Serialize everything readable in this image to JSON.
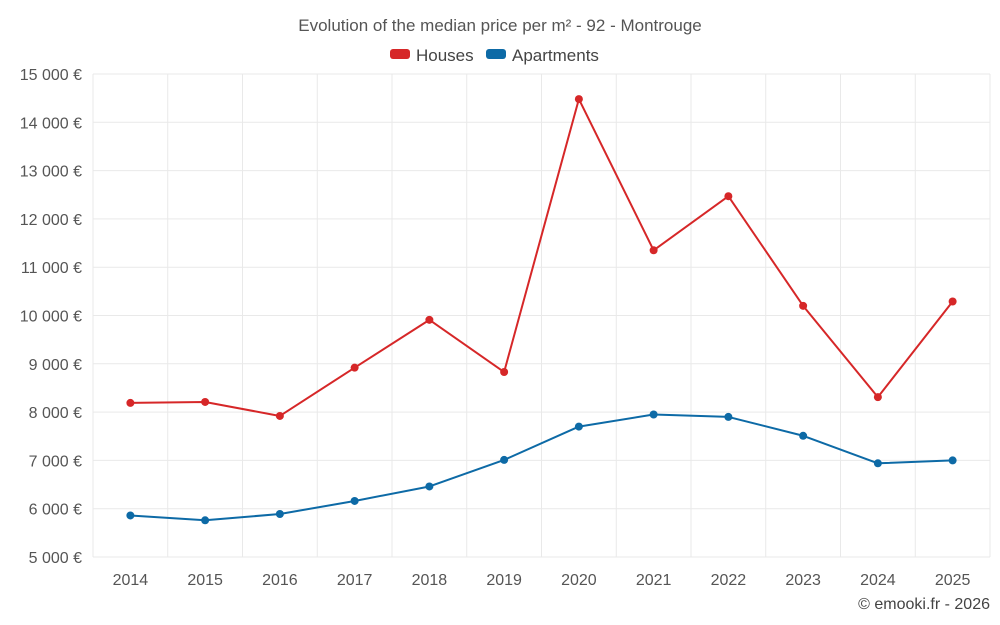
{
  "chart_data": {
    "type": "line",
    "title": "Evolution of the median price per m² - 92 - Montrouge",
    "categories": [
      "2014",
      "2015",
      "2016",
      "2017",
      "2018",
      "2019",
      "2020",
      "2021",
      "2022",
      "2023",
      "2024",
      "2025"
    ],
    "series": [
      {
        "name": "Houses",
        "color": "#d62728",
        "values": [
          8190,
          8210,
          7920,
          8920,
          9910,
          8830,
          14480,
          11350,
          12470,
          10200,
          8310,
          10290
        ]
      },
      {
        "name": "Apartments",
        "color": "#0d6aa6",
        "values": [
          5860,
          5760,
          5890,
          6160,
          6460,
          7010,
          7700,
          7950,
          7900,
          7510,
          6940,
          7000
        ]
      }
    ],
    "ylim": [
      5000,
      15000
    ],
    "yticks": [
      5000,
      6000,
      7000,
      8000,
      9000,
      10000,
      11000,
      12000,
      13000,
      14000,
      15000
    ],
    "ytick_labels": [
      "5 000 €",
      "6 000 €",
      "7 000 €",
      "8 000 €",
      "9 000 €",
      "10 000 €",
      "11 000 €",
      "12 000 €",
      "13 000 €",
      "14 000 €",
      "15 000 €"
    ],
    "xlabel": "",
    "ylabel": "",
    "legend_position": "top-center",
    "grid": true,
    "credit": "© emooki.fr - 2026"
  }
}
